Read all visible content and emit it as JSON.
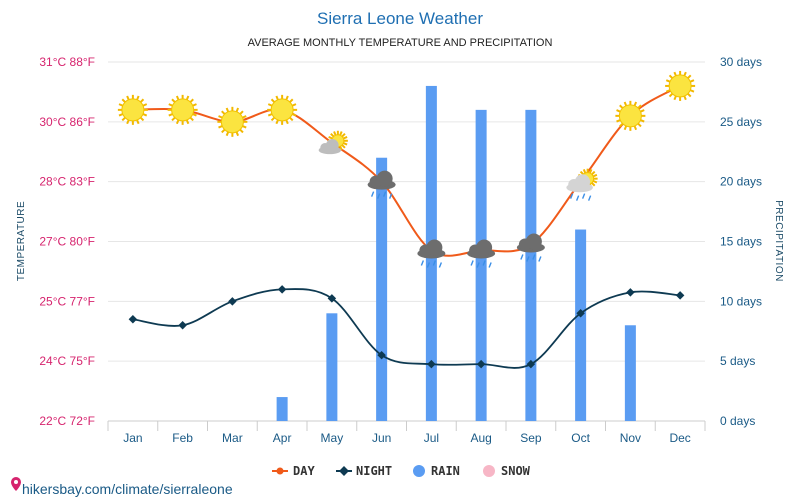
{
  "header": {
    "title": "Sierra Leone Weather",
    "subtitle": "AVERAGE MONTHLY TEMPERATURE AND PRECIPITATION"
  },
  "footer": {
    "source_text": "hikersbay.com/climate/sierraleone"
  },
  "colors": {
    "day": "#f05a1a",
    "night": "#0e3a52",
    "rain": "#5a9cf2",
    "snow": "#f7b6c6",
    "left_axis": "#d6246e",
    "right_axis": "#1a5a86",
    "grid": "#e6e6e6"
  },
  "chart_data": {
    "type": "line",
    "categories": [
      "Jan",
      "Feb",
      "Mar",
      "Apr",
      "May",
      "Jun",
      "Jul",
      "Aug",
      "Sep",
      "Oct",
      "Nov",
      "Dec"
    ],
    "left_axis": {
      "label": "TEMPERATURE",
      "ticks": [
        {
          "value": 22,
          "label": "22°C 72°F"
        },
        {
          "value": 24,
          "label": "24°C 75°F"
        },
        {
          "value": 25,
          "label": "25°C 77°F"
        },
        {
          "value": 27,
          "label": "27°C 80°F"
        },
        {
          "value": 28,
          "label": "28°C 83°F"
        },
        {
          "value": 30,
          "label": "30°C 86°F"
        },
        {
          "value": 31,
          "label": "31°C 88°F"
        }
      ]
    },
    "right_axis": {
      "label": "PRECIPITATION",
      "ylim": [
        0,
        30
      ],
      "ticks": [
        {
          "value": 0,
          "label": "0 days"
        },
        {
          "value": 5,
          "label": "5 days"
        },
        {
          "value": 10,
          "label": "10 days"
        },
        {
          "value": 15,
          "label": "15 days"
        },
        {
          "value": 20,
          "label": "20 days"
        },
        {
          "value": 25,
          "label": "25 days"
        },
        {
          "value": 30,
          "label": "30 days"
        }
      ]
    },
    "series": [
      {
        "name": "DAY",
        "type": "line",
        "axis": "left",
        "values": [
          30.2,
          30.2,
          30.0,
          30.2,
          29.3,
          28.0,
          26.7,
          26.7,
          26.9,
          28.0,
          30.1,
          30.6
        ]
      },
      {
        "name": "NIGHT",
        "type": "line",
        "axis": "left",
        "values": [
          24.7,
          24.6,
          25.0,
          25.4,
          25.1,
          24.1,
          23.9,
          23.9,
          23.9,
          24.8,
          25.3,
          25.2
        ]
      },
      {
        "name": "RAIN",
        "type": "bar",
        "axis": "right",
        "values": [
          0,
          0,
          0,
          2,
          9,
          22,
          28,
          26,
          26,
          16,
          8,
          0
        ]
      },
      {
        "name": "SNOW",
        "type": "bar",
        "axis": "right",
        "values": [
          0,
          0,
          0,
          0,
          0,
          0,
          0,
          0,
          0,
          0,
          0,
          0
        ]
      }
    ],
    "weather_icons": [
      "sun-icon",
      "sun-icon",
      "sun-icon",
      "sun-icon",
      "sun-cloud-icon",
      "storm-rain-icon",
      "storm-rain-icon",
      "storm-rain-icon",
      "storm-rain-icon",
      "sun-cloud-rain-icon",
      "sun-icon",
      "sun-icon"
    ],
    "grid": true,
    "legend_position": "bottom-center"
  }
}
